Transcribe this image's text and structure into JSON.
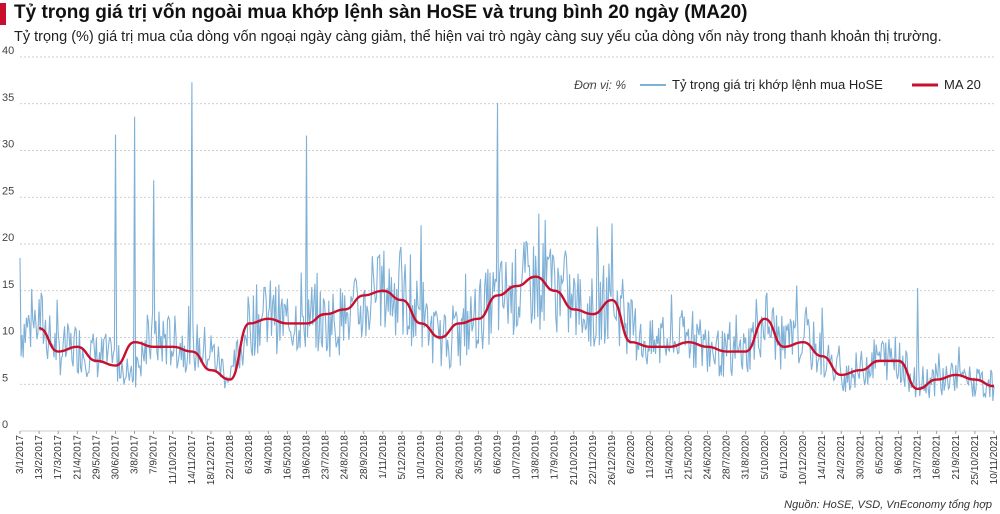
{
  "title": "Tỷ trọng giá trị vốn ngoài mua khớp lệnh sàn HoSE và trung bình 20 ngày (MA20)",
  "subtitle": "Tỷ trọng (%) giá trị mua của dòng vốn ngoại ngày càng giảm, thể hiện vai trò ngày càng suy yếu của dòng vốn này trong thanh khoản thị trường.",
  "source": "Nguồn: HoSE, VSD, VnEconomy tổng hợp",
  "colors": {
    "accent": "#c8102e",
    "daily": "#7fb0d6",
    "ma20": "#c8102e",
    "grid": "#bdbdbd"
  },
  "chart_data": {
    "type": "line",
    "unit_label": "Đơn vị: %",
    "ylim": [
      0,
      40
    ],
    "yticks": [
      0,
      5,
      10,
      15,
      20,
      25,
      30,
      35,
      40
    ],
    "grid": "horizontal-dotted",
    "legend_position": "top-right",
    "x": [
      "3/1/2017",
      "13/2/2017",
      "17/3/2017",
      "21/4/2017",
      "29/5/2017",
      "30/6/2017",
      "3/8/2017",
      "7/9/2017",
      "11/10/2017",
      "14/11/2017",
      "18/12/2017",
      "22/1/2018",
      "6/3/2018",
      "9/4/2018",
      "16/5/2018",
      "19/6/2018",
      "23/7/2018",
      "24/8/2018",
      "28/9/2018",
      "1/11/2018",
      "5/12/2018",
      "10/1/2019",
      "20/2/2019",
      "26/3/2019",
      "3/5/2019",
      "6/6/2019",
      "10/7/2019",
      "13/8/2019",
      "17/9/2019",
      "21/10/2019",
      "22/11/2019",
      "26/12/2019",
      "6/2/2020",
      "11/3/2020",
      "15/4/2020",
      "21/5/2020",
      "24/6/2020",
      "28/7/2020",
      "31/8/2020",
      "5/10/2020",
      "6/11/2020",
      "10/12/2020",
      "14/1/2021",
      "24/2/2021",
      "30/3/2021",
      "6/5/2021",
      "9/6/2021",
      "13/7/2021",
      "16/8/2021",
      "21/9/2021",
      "25/10/2021",
      "10/11/2021"
    ],
    "series": [
      {
        "name": "Tỷ trọng giá trị khớp lệnh mua HoSE",
        "values": [
          10.5,
          12.0,
          8.5,
          9.0,
          8.0,
          7.5,
          6.5,
          10.0,
          9.5,
          9.0,
          8.5,
          5.5,
          11.5,
          12.5,
          11.5,
          12.5,
          11.5,
          12.0,
          13.0,
          15.0,
          14.5,
          12.0,
          9.5,
          10.0,
          12.5,
          14.0,
          15.0,
          16.0,
          15.5,
          13.5,
          12.5,
          14.5,
          11.0,
          9.0,
          9.5,
          10.0,
          9.0,
          8.0,
          8.5,
          12.0,
          9.0,
          10.0,
          8.0,
          6.0,
          6.5,
          8.0,
          7.5,
          5.0,
          5.5,
          6.0,
          5.0,
          4.8
        ],
        "peaks": [
          {
            "date": "3/1/2017",
            "value": 18.5
          },
          {
            "date": "30/6/2017",
            "value": 31.7
          },
          {
            "date": "3/8/2017",
            "value": 33.6
          },
          {
            "date": "7/9/2017",
            "value": 26.8
          },
          {
            "date": "14/11/2017",
            "value": 37.3
          },
          {
            "date": "19/6/2018",
            "value": 31.6
          },
          {
            "date": "10/1/2019",
            "value": 22.0
          },
          {
            "date": "6/6/2019",
            "value": 35.1
          },
          {
            "date": "26/12/2019",
            "value": 22.2
          },
          {
            "date": "14/1/2021",
            "value": 13.2
          },
          {
            "date": "13/7/2021",
            "value": 15.3
          }
        ]
      },
      {
        "name": "MA 20",
        "values": [
          null,
          11.0,
          8.5,
          9.0,
          7.5,
          7.0,
          9.5,
          9.0,
          9.0,
          8.5,
          6.5,
          5.5,
          11.5,
          12.0,
          11.5,
          11.5,
          12.5,
          13.0,
          14.5,
          15.0,
          14.0,
          11.5,
          10.0,
          11.5,
          12.0,
          14.5,
          15.5,
          16.5,
          15.0,
          13.0,
          12.5,
          14.0,
          9.5,
          9.0,
          9.0,
          9.5,
          9.0,
          8.5,
          8.5,
          12.0,
          9.0,
          9.5,
          8.0,
          6.0,
          6.5,
          7.5,
          7.5,
          4.5,
          5.5,
          6.0,
          5.5,
          4.8
        ]
      }
    ]
  }
}
